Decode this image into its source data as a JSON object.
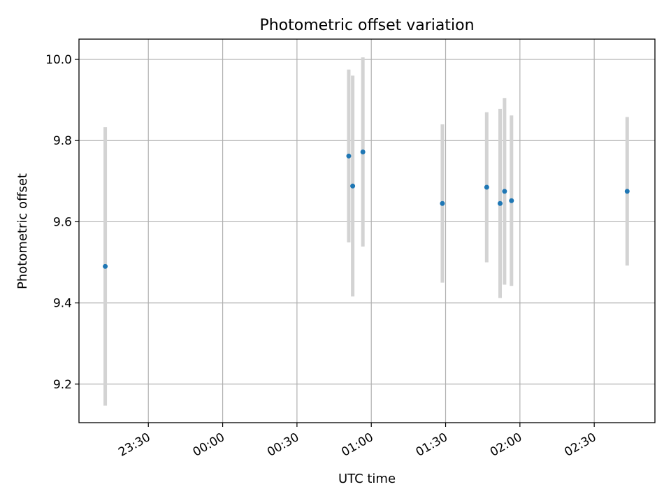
{
  "chart_data": {
    "type": "scatter",
    "title": "Photometric offset variation",
    "xlabel": "UTC time",
    "ylabel": "Photometric offset",
    "x_start_time": "23:02",
    "xlim_minutes": [
      0,
      232.5
    ],
    "ylim": [
      9.105,
      10.05
    ],
    "x_ticks": [
      {
        "label": "23:30",
        "minutes": 28
      },
      {
        "label": "00:00",
        "minutes": 58
      },
      {
        "label": "00:30",
        "minutes": 88
      },
      {
        "label": "01:00",
        "minutes": 118
      },
      {
        "label": "01:30",
        "minutes": 148
      },
      {
        "label": "02:00",
        "minutes": 178
      },
      {
        "label": "02:30",
        "minutes": 208
      }
    ],
    "y_ticks": [
      {
        "label": "9.2",
        "value": 9.2
      },
      {
        "label": "9.4",
        "value": 9.4
      },
      {
        "label": "9.6",
        "value": 9.6
      },
      {
        "label": "9.8",
        "value": 9.8
      },
      {
        "label": "10.0",
        "value": 10.0
      }
    ],
    "grid": true,
    "colors": {
      "point": "#1f77b4",
      "errorbar": "#d3d3d3",
      "grid": "#b0b0b0"
    },
    "points": [
      {
        "t": 10.6,
        "y": 9.49,
        "err": 0.343
      },
      {
        "t": 108.9,
        "y": 9.762,
        "err": 0.213
      },
      {
        "t": 110.5,
        "y": 9.688,
        "err": 0.272
      },
      {
        "t": 114.6,
        "y": 9.772,
        "err": 0.233
      },
      {
        "t": 146.7,
        "y": 9.645,
        "err": 0.195
      },
      {
        "t": 164.6,
        "y": 9.685,
        "err": 0.185
      },
      {
        "t": 170.0,
        "y": 9.645,
        "err": 0.233
      },
      {
        "t": 171.8,
        "y": 9.675,
        "err": 0.23
      },
      {
        "t": 174.6,
        "y": 9.652,
        "err": 0.21
      },
      {
        "t": 221.3,
        "y": 9.675,
        "err": 0.183
      }
    ]
  }
}
